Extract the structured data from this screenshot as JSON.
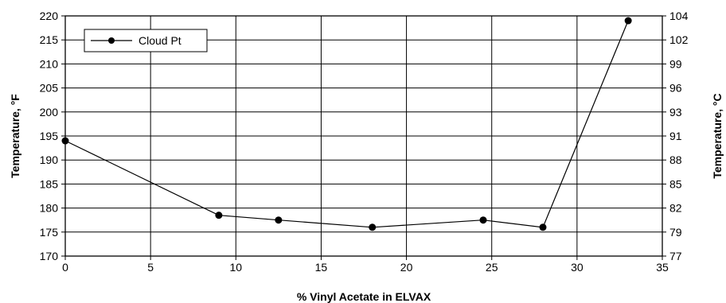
{
  "chart_data": {
    "type": "line",
    "title": "",
    "xlabel": "% Vinyl Acetate in ELVAX",
    "ylabel": "Temperature, °F",
    "y2label": "Temperature, °C",
    "xlim": [
      0,
      35
    ],
    "ylim": [
      170,
      220
    ],
    "y2lim": [
      77,
      104
    ],
    "x_ticks": [
      "0",
      "5",
      "10",
      "15",
      "20",
      "25",
      "30",
      "35"
    ],
    "y_ticks": [
      "170",
      "175",
      "180",
      "185",
      "190",
      "195",
      "200",
      "205",
      "210",
      "215",
      "220"
    ],
    "y2_ticks": [
      "77",
      "79",
      "82",
      "85",
      "88",
      "91",
      "93",
      "96",
      "99",
      "102",
      "104"
    ],
    "grid": true,
    "legend_position": "top-left",
    "series": [
      {
        "name": "Cloud Pt",
        "color": "#000000",
        "marker": "circle",
        "x": [
          0,
          9,
          12.5,
          18,
          24.5,
          28,
          33
        ],
        "y": [
          194,
          178.5,
          177.5,
          176,
          177.5,
          176,
          219
        ]
      }
    ]
  }
}
